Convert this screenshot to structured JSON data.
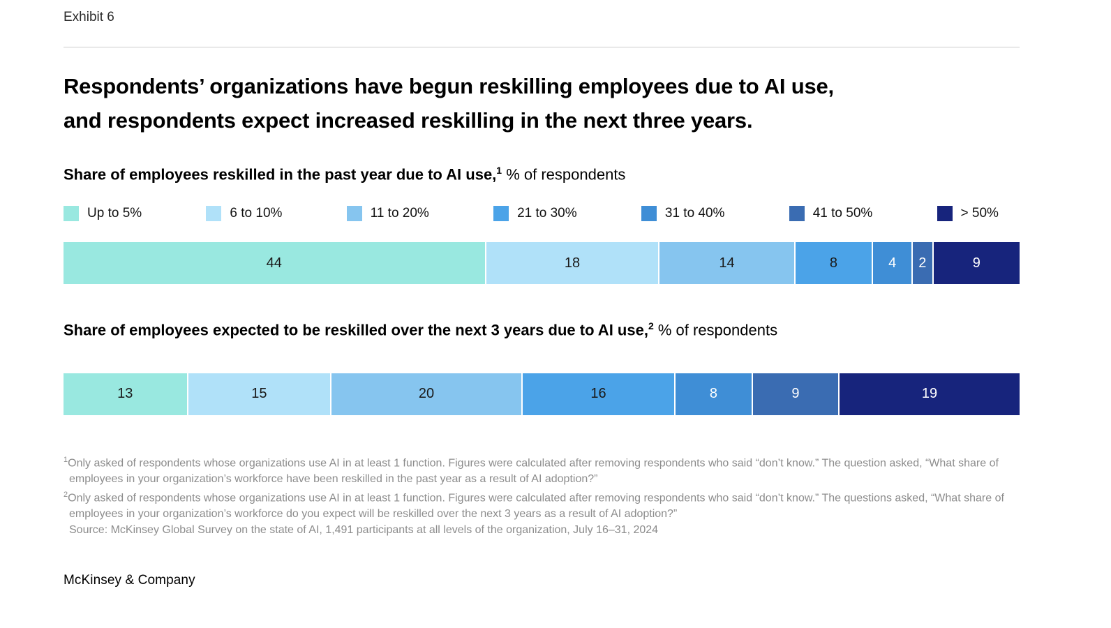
{
  "exhibit_label": "Exhibit 6",
  "title_lines": [
    "Respondents’ organizations have begun reskilling employees due to AI use,",
    "and respondents expect increased reskilling in the next three years."
  ],
  "legend": [
    {
      "label": "Up to 5%",
      "color": "#99e8e0"
    },
    {
      "label": "6 to 10%",
      "color": "#b0e1f9"
    },
    {
      "label": "11 to 20%",
      "color": "#86c5ef"
    },
    {
      "label": "21 to 30%",
      "color": "#4ba3e8"
    },
    {
      "label": "31 to 40%",
      "color": "#3f8ed6"
    },
    {
      "label": "41 to 50%",
      "color": "#3a6cb2"
    },
    {
      "label": "> 50%",
      "color": "#17247c"
    }
  ],
  "chart_data": [
    {
      "type": "bar",
      "variant": "stacked-horizontal",
      "title_bold": "Share of employees reskilled in the past year due to AI use,",
      "title_footnote_marker": "1",
      "title_regular": " % of respondents",
      "categories": [
        "Up to 5%",
        "6 to 10%",
        "11 to 20%",
        "21 to 30%",
        "31 to 40%",
        "41 to 50%",
        "> 50%"
      ],
      "values": [
        44,
        18,
        14,
        8,
        4,
        2,
        9
      ],
      "unit": "% of respondents",
      "legend_position": "top",
      "axis": "none"
    },
    {
      "type": "bar",
      "variant": "stacked-horizontal",
      "title_bold": "Share of employees expected to be reskilled over the next 3 years due to AI use,",
      "title_footnote_marker": "2",
      "title_regular": " % of respondents",
      "categories": [
        "Up to 5%",
        "6 to 10%",
        "11 to 20%",
        "21 to 30%",
        "31 to 40%",
        "41 to 50%",
        "> 50%"
      ],
      "values": [
        13,
        15,
        20,
        16,
        8,
        9,
        19
      ],
      "unit": "% of respondents",
      "legend_position": "shared-top",
      "axis": "none"
    }
  ],
  "footnotes": [
    {
      "marker": "1",
      "text": "Only asked of respondents whose organizations use AI in at least 1 function. Figures were calculated after removing respondents who said “don’t know.” The question asked, “What share of employees in your organization’s workforce have been reskilled in the past year as a result of AI adoption?”"
    },
    {
      "marker": "2",
      "text": "Only asked of respondents whose organizations use AI in at least 1 function. Figures were calculated after removing respondents who said “don’t know.” The questions asked, “What share of employees in your organization’s workforce do you expect will be reskilled over the next 3 years as a result of AI adoption?”"
    },
    {
      "marker": "",
      "text": "Source: McKinsey Global Survey on the state of AI, 1,491 participants at all levels of the organization, July 16–31, 2024"
    }
  ],
  "logo_text": "McKinsey & Company"
}
